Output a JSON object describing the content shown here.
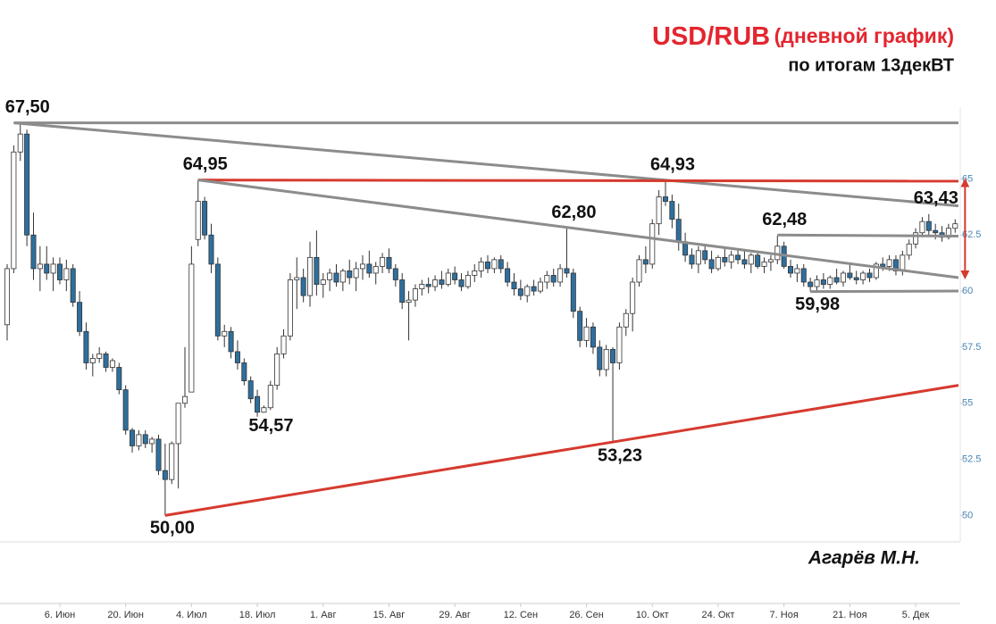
{
  "chart_data": {
    "type": "candlestick",
    "title": "USD/RUB",
    "title_note": "(дневной график)",
    "subtitle": "по итогам 13декВТ",
    "author": "Агарёв М.Н.",
    "up_color": "#ffffff",
    "down_color": "#2e6f9e",
    "ylim": [
      48.9,
      68.2
    ],
    "yticks": [
      50,
      52.5,
      55,
      57.5,
      60,
      62.5,
      65
    ],
    "categories": [
      null,
      null,
      null,
      null,
      null,
      null,
      null,
      null,
      "6. Июн",
      null,
      null,
      null,
      null,
      null,
      null,
      null,
      null,
      null,
      "20. Июн",
      null,
      null,
      null,
      null,
      null,
      null,
      null,
      null,
      null,
      "4. Июл",
      null,
      null,
      null,
      null,
      null,
      null,
      null,
      null,
      null,
      "18. Июл",
      null,
      null,
      null,
      null,
      null,
      null,
      null,
      null,
      null,
      "1. Авг",
      null,
      null,
      null,
      null,
      null,
      null,
      null,
      null,
      null,
      "15. Авг",
      null,
      null,
      null,
      null,
      null,
      null,
      null,
      null,
      null,
      "29. Авг",
      null,
      null,
      null,
      null,
      null,
      null,
      null,
      null,
      null,
      "12. Сен",
      null,
      null,
      null,
      null,
      null,
      null,
      null,
      null,
      null,
      "26. Сен",
      null,
      null,
      null,
      null,
      null,
      null,
      null,
      null,
      null,
      "10. Окт",
      null,
      null,
      null,
      null,
      null,
      null,
      null,
      null,
      null,
      "24. Окт",
      null,
      null,
      null,
      null,
      null,
      null,
      null,
      null,
      null,
      "7. Ноя",
      null,
      null,
      null,
      null,
      null,
      null,
      null,
      null,
      null,
      "21. Ноя",
      null,
      null,
      null,
      null,
      null,
      null,
      null,
      null,
      null,
      "5. Дек",
      null,
      null,
      null,
      null,
      null,
      null
    ],
    "ohlc": [
      [
        58.5,
        61.2,
        57.8,
        61
      ],
      [
        61,
        66.5,
        60.8,
        66.2
      ],
      [
        66.2,
        67.5,
        65.8,
        67
      ],
      [
        67,
        67.2,
        62,
        62.5
      ],
      [
        62.5,
        63.5,
        60.5,
        61
      ],
      [
        61,
        62,
        60,
        61.2
      ],
      [
        61.2,
        62,
        60.5,
        60.8
      ],
      [
        60.8,
        61.5,
        60,
        61.2
      ],
      [
        61.2,
        61.5,
        60.3,
        60.5
      ],
      [
        60.5,
        61.4,
        60,
        61
      ],
      [
        61,
        61.2,
        59.3,
        59.5
      ],
      [
        59.5,
        60,
        58,
        58.2
      ],
      [
        58.2,
        58.6,
        56.5,
        56.8
      ],
      [
        56.8,
        57.2,
        56.2,
        57
      ],
      [
        57,
        57.5,
        56.8,
        57.2
      ],
      [
        57.2,
        57.3,
        56.4,
        56.6
      ],
      [
        56.6,
        57,
        56.4,
        56.9
      ],
      [
        56.6,
        56.8,
        55.4,
        55.6
      ],
      [
        55.6,
        55.8,
        53.6,
        53.8
      ],
      [
        53.8,
        53.9,
        52.8,
        53.1
      ],
      [
        53.1,
        53.8,
        52.9,
        53.6
      ],
      [
        53.6,
        53.8,
        53,
        53.2
      ],
      [
        53.2,
        53.5,
        52.8,
        53.4
      ],
      [
        53.4,
        53.6,
        51.8,
        52
      ],
      [
        52,
        53.2,
        50,
        51.6
      ],
      [
        51.6,
        53.3,
        51.4,
        53.2
      ],
      [
        53.2,
        55,
        51.2,
        55
      ],
      [
        55,
        57.5,
        54.8,
        55.3
      ],
      [
        55.5,
        62,
        55.5,
        61.2
      ],
      [
        62.3,
        64.95,
        62,
        64
      ],
      [
        64,
        64.2,
        62.3,
        62.5
      ],
      [
        62.5,
        63,
        60.8,
        61.2
      ],
      [
        61.2,
        61.5,
        57.8,
        58
      ],
      [
        58,
        58.5,
        57.5,
        58.2
      ],
      [
        58.2,
        58.4,
        57,
        57.3
      ],
      [
        57.3,
        57.8,
        56.5,
        56.8
      ],
      [
        56.8,
        57,
        55.8,
        56
      ],
      [
        56,
        56.2,
        55,
        55.2
      ],
      [
        55.3,
        55.6,
        54.4,
        54.6
      ],
      [
        54.6,
        54.9,
        54.57,
        54.8
      ],
      [
        54.8,
        56,
        54.7,
        55.8
      ],
      [
        55.8,
        57.5,
        55.6,
        57.2
      ],
      [
        57.2,
        58.3,
        57,
        58
      ],
      [
        58,
        60.8,
        57.8,
        60.5
      ],
      [
        60.5,
        61.5,
        59.2,
        60.6
      ],
      [
        60.6,
        61,
        59.5,
        59.8
      ],
      [
        59.8,
        62.2,
        59.3,
        61.5
      ],
      [
        61.5,
        62.7,
        59.8,
        60.3
      ],
      [
        60.3,
        60.8,
        59.7,
        60.5
      ],
      [
        60.5,
        61,
        60,
        60.8
      ],
      [
        60.8,
        61.2,
        60.2,
        60.4
      ],
      [
        60.4,
        61,
        60,
        60.9
      ],
      [
        60.9,
        61.4,
        60.3,
        60.6
      ],
      [
        60.6,
        61.3,
        60,
        61
      ],
      [
        61,
        61.6,
        60.5,
        61.2
      ],
      [
        61.2,
        61.8,
        60.6,
        60.8
      ],
      [
        60.8,
        61.3,
        60.3,
        61.1
      ],
      [
        61.1,
        61.7,
        60.8,
        61.5
      ],
      [
        61.5,
        61.9,
        60.8,
        61
      ],
      [
        61,
        61.2,
        60.2,
        60.5
      ],
      [
        60.5,
        60.8,
        59.2,
        59.5
      ],
      [
        59.5,
        60,
        57.8,
        59.6
      ],
      [
        59.6,
        60.3,
        59.3,
        60.1
      ],
      [
        60.1,
        60.5,
        59.8,
        60.3
      ],
      [
        60.3,
        60.6,
        59.9,
        60.2
      ],
      [
        60.2,
        60.7,
        60,
        60.5
      ],
      [
        60.5,
        60.9,
        60.1,
        60.3
      ],
      [
        60.3,
        61,
        60.2,
        60.8
      ],
      [
        60.8,
        61.1,
        60.3,
        60.5
      ],
      [
        60.5,
        60.8,
        60,
        60.2
      ],
      [
        60.2,
        60.9,
        60.1,
        60.7
      ],
      [
        60.7,
        61.2,
        60.4,
        60.9
      ],
      [
        60.9,
        61.5,
        60.6,
        61.3
      ],
      [
        61.3,
        61.6,
        60.8,
        61
      ],
      [
        61,
        61.5,
        60.8,
        61.4
      ],
      [
        61.4,
        61.6,
        60.8,
        61
      ],
      [
        61,
        61.3,
        60.2,
        60.4
      ],
      [
        60.4,
        60.8,
        59.8,
        60.1
      ],
      [
        60.1,
        60.5,
        59.6,
        59.8
      ],
      [
        59.8,
        60.3,
        59.5,
        60.2
      ],
      [
        60.2,
        60.5,
        59.8,
        60
      ],
      [
        60,
        60.6,
        59.9,
        60.4
      ],
      [
        60.4,
        60.9,
        60.1,
        60.7
      ],
      [
        60.7,
        61,
        60.2,
        60.4
      ],
      [
        60.4,
        61.2,
        60.2,
        61
      ],
      [
        61,
        62.8,
        60.6,
        60.8
      ],
      [
        60.8,
        61,
        58.8,
        59.1
      ],
      [
        59.1,
        59.3,
        57.5,
        57.8
      ],
      [
        57.8,
        58.8,
        57.5,
        58.4
      ],
      [
        58.4,
        58.6,
        57.2,
        57.5
      ],
      [
        57.5,
        57.8,
        56.2,
        56.5
      ],
      [
        56.5,
        57.6,
        56.2,
        57.4
      ],
      [
        57.4,
        57.5,
        53.23,
        56.8
      ],
      [
        56.8,
        58.6,
        56.5,
        58.4
      ],
      [
        58.4,
        59.2,
        58,
        59
      ],
      [
        59,
        60.6,
        58.2,
        60.4
      ],
      [
        60.4,
        61.6,
        60.2,
        61.4
      ],
      [
        61.4,
        62,
        60.8,
        61.2
      ],
      [
        61.2,
        63.2,
        61,
        63
      ],
      [
        63,
        64.5,
        62.5,
        64.2
      ],
      [
        64.2,
        64.93,
        63.8,
        64
      ],
      [
        64,
        64.3,
        62.8,
        63.2
      ],
      [
        63.2,
        63.9,
        61.8,
        62.2
      ],
      [
        62.2,
        62.6,
        61.3,
        61.6
      ],
      [
        61.6,
        61.9,
        61,
        61.2
      ],
      [
        61.2,
        62,
        60.8,
        61.8
      ],
      [
        61.8,
        62,
        61.2,
        61.4
      ],
      [
        61.4,
        61.8,
        60.8,
        61
      ],
      [
        61,
        61.6,
        60.9,
        61.5
      ],
      [
        61.5,
        61.9,
        61.1,
        61.3
      ],
      [
        61.3,
        61.8,
        61,
        61.6
      ],
      [
        61.6,
        61.9,
        61.2,
        61.4
      ],
      [
        61.4,
        61.8,
        61,
        61.2
      ],
      [
        61.2,
        61.7,
        60.8,
        61.6
      ],
      [
        61.6,
        61.8,
        61,
        61.1
      ],
      [
        61.1,
        61.5,
        60.8,
        61.3
      ],
      [
        61.3,
        61.6,
        60.9,
        61.4
      ],
      [
        61.4,
        62.48,
        61.2,
        62
      ],
      [
        62,
        62.2,
        61,
        61.1
      ],
      [
        61.1,
        61.4,
        60.6,
        60.8
      ],
      [
        60.8,
        61.2,
        60.4,
        61
      ],
      [
        61,
        61.2,
        60.2,
        60.4
      ],
      [
        60.4,
        60.6,
        59.98,
        60.2
      ],
      [
        60.2,
        60.7,
        60,
        60.5
      ],
      [
        60.5,
        60.8,
        60.1,
        60.3
      ],
      [
        60.3,
        60.7,
        60.1,
        60.6
      ],
      [
        60.6,
        61,
        60.3,
        60.4
      ],
      [
        60.4,
        60.9,
        60.2,
        60.8
      ],
      [
        60.8,
        61.2,
        60.5,
        60.6
      ],
      [
        60.6,
        60.9,
        60.3,
        60.5
      ],
      [
        60.5,
        60.9,
        60.3,
        60.8
      ],
      [
        60.8,
        61,
        60.4,
        60.6
      ],
      [
        60.6,
        61.3,
        60.5,
        61.2
      ],
      [
        61.2,
        61.5,
        60.9,
        61.1
      ],
      [
        61.1,
        61.6,
        60.9,
        61.4
      ],
      [
        61.4,
        61.6,
        60.7,
        60.9
      ],
      [
        60.9,
        61.8,
        60.7,
        61.6
      ],
      [
        61.6,
        62.3,
        61.4,
        62.1
      ],
      [
        62.1,
        62.8,
        61.9,
        62.6
      ],
      [
        62.6,
        63.3,
        62.4,
        63.1
      ],
      [
        63.1,
        63.43,
        62.5,
        62.7
      ],
      [
        62.7,
        63,
        62.3,
        62.6
      ],
      [
        62.6,
        62.9,
        62.2,
        62.4
      ],
      [
        62.4,
        63,
        62.3,
        62.8
      ],
      [
        62.8,
        63.2,
        62.6,
        63
      ]
    ],
    "lines": [
      {
        "from": [
          1,
          67.5
        ],
        "to": [
          144.5,
          67.5
        ],
        "color": "#8c8c8c"
      },
      {
        "from": [
          1,
          67.5
        ],
        "to": [
          144.5,
          63.8
        ],
        "color": "#8c8c8c"
      },
      {
        "from": [
          29,
          64.95
        ],
        "to": [
          144.5,
          64.9
        ],
        "color": "#d63a2f"
      },
      {
        "from": [
          29,
          64.95
        ],
        "to": [
          144.5,
          60.6
        ],
        "color": "#8c8c8c"
      },
      {
        "from": [
          117,
          62.5
        ],
        "to": [
          144.5,
          62.45
        ],
        "color": "#8c8c8c"
      },
      {
        "from": [
          122,
          59.98
        ],
        "to": [
          144.5,
          60
        ],
        "color": "#8c8c8c"
      },
      {
        "from": [
          24,
          50
        ],
        "to": [
          144.5,
          55.8
        ],
        "color": "#d63a2f"
      },
      {
        "from": [
          145.5,
          64.95
        ],
        "to": [
          145.5,
          60.6
        ],
        "color": "#d63a2f",
        "arrows": true
      }
    ],
    "annotations": [
      {
        "index": 2,
        "value": 67.5,
        "label": "67,50",
        "side": "above"
      },
      {
        "index": 29,
        "value": 64.95,
        "label": "64,95",
        "side": "above"
      },
      {
        "index": 39,
        "value": 54.57,
        "label": "54,57",
        "side": "below"
      },
      {
        "index": 24,
        "value": 50,
        "label": "50,00",
        "side": "below"
      },
      {
        "index": 85,
        "value": 62.8,
        "label": "62,80",
        "side": "above"
      },
      {
        "index": 92,
        "value": 53.23,
        "label": "53,23",
        "side": "below"
      },
      {
        "index": 100,
        "value": 64.93,
        "label": "64,93",
        "side": "above"
      },
      {
        "index": 117,
        "value": 62.48,
        "label": "62,48",
        "side": "above"
      },
      {
        "index": 122,
        "value": 59.98,
        "label": "59,98",
        "side": "below"
      },
      {
        "index": 140,
        "value": 63.43,
        "label": "63,43",
        "side": "above"
      }
    ]
  }
}
